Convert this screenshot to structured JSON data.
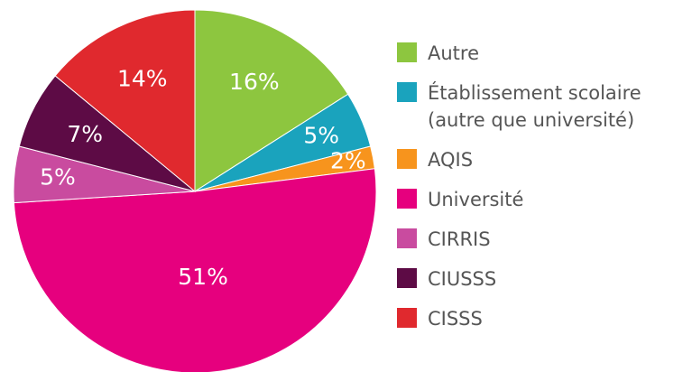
{
  "chart_data": {
    "type": "pie",
    "categories": [
      "Autre",
      "Établissement scolaire (autre que université)",
      "AQIS",
      "Université",
      "CIRRIS",
      "CIUSSS",
      "CISSS"
    ],
    "values": [
      16,
      5,
      2,
      51,
      5,
      7,
      14
    ],
    "value_labels": [
      "16%",
      "5%",
      "2%",
      "51%",
      "5%",
      "7%",
      "14%"
    ],
    "colors": [
      "#8dc63f",
      "#1aa3bd",
      "#f7941d",
      "#e6007e",
      "#c94b9f",
      "#5d0b45",
      "#e0292e"
    ],
    "legend": "right"
  }
}
